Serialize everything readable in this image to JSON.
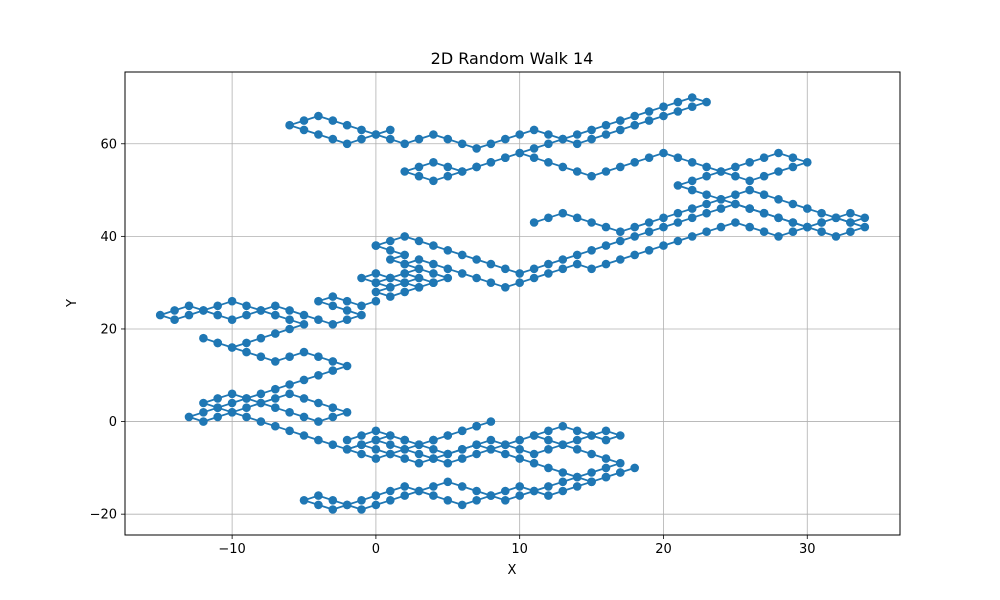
{
  "chart_data": {
    "type": "line",
    "title": "2D Random Walk 14",
    "xlabel": "X",
    "ylabel": "Y",
    "xlim": [
      -17.45,
      36.45
    ],
    "ylim": [
      -24.5,
      75.5
    ],
    "xticks": [
      -10,
      0,
      10,
      20,
      30
    ],
    "yticks": [
      -20,
      0,
      20,
      40,
      60
    ],
    "xtick_labels": [
      "−10",
      "0",
      "10",
      "20",
      "30"
    ],
    "ytick_labels": [
      "−20",
      "0",
      "20",
      "40",
      "60"
    ],
    "grid": true,
    "marker": "circle",
    "color": "#1f77b4",
    "series": [
      {
        "x": [
          0,
          1,
          2,
          1,
          2,
          3,
          4,
          5,
          4,
          3,
          2,
          1,
          0,
          1,
          2,
          3,
          4,
          3,
          2,
          1,
          0,
          -1,
          0,
          1,
          2,
          3,
          2,
          1,
          0,
          1,
          2,
          3,
          2,
          3,
          4,
          5,
          6,
          7,
          8,
          9,
          10,
          11,
          12,
          13,
          14,
          15,
          16,
          17,
          18,
          19,
          20,
          21,
          22,
          23,
          24,
          25,
          26,
          27,
          28,
          29,
          30,
          31,
          32,
          33,
          34,
          33,
          32,
          31,
          30,
          29,
          28,
          27,
          26,
          25,
          24,
          23,
          22,
          21,
          22,
          23,
          24,
          25,
          26,
          27,
          28,
          29,
          30,
          29,
          28,
          27,
          26,
          25,
          24,
          23,
          22,
          21,
          20,
          19,
          18,
          17,
          16,
          15,
          14,
          13,
          12,
          11,
          10,
          9,
          8,
          7,
          6,
          5,
          4,
          3,
          2,
          3,
          4,
          5,
          6,
          7,
          8,
          9,
          10,
          11,
          12,
          13,
          14,
          15,
          16,
          17,
          18,
          19,
          20,
          21,
          22,
          23,
          22,
          21,
          20,
          19,
          18,
          17,
          16,
          15,
          14,
          13,
          12,
          11,
          10,
          9,
          8,
          7,
          6,
          5,
          4,
          3,
          2,
          1,
          0,
          -1,
          -2,
          -3,
          -4,
          -5,
          -6,
          -5,
          -4,
          -3,
          -2,
          -1,
          0,
          1
        ],
        "y": [
          38,
          37,
          36,
          35,
          34,
          33,
          32,
          31,
          30,
          29,
          28,
          27,
          28,
          29,
          30,
          31,
          30,
          29,
          30,
          31,
          32,
          31,
          30,
          31,
          32,
          31,
          30,
          29,
          30,
          31,
          32,
          33,
          34,
          35,
          34,
          33,
          32,
          31,
          30,
          29,
          30,
          31,
          32,
          33,
          34,
          33,
          34,
          35,
          36,
          37,
          38,
          39,
          40,
          41,
          42,
          43,
          42,
          41,
          40,
          41,
          42,
          43,
          44,
          43,
          44,
          45,
          44,
          43,
          42,
          43,
          44,
          45,
          46,
          47,
          48,
          49,
          50,
          51,
          52,
          53,
          54,
          55,
          56,
          57,
          58,
          57,
          56,
          55,
          54,
          53,
          52,
          53,
          54,
          55,
          56,
          57,
          58,
          57,
          56,
          55,
          54,
          53,
          54,
          55,
          56,
          57,
          58,
          57,
          56,
          55,
          54,
          55,
          56,
          55,
          54,
          53,
          52,
          53,
          54,
          55,
          56,
          57,
          58,
          59,
          60,
          61,
          62,
          63,
          64,
          65,
          66,
          67,
          68,
          69,
          70,
          69,
          68,
          67,
          66,
          65,
          64,
          63,
          62,
          61,
          60,
          61,
          62,
          63,
          62,
          61,
          60,
          59,
          60,
          61,
          62,
          61,
          60,
          61,
          62,
          63,
          64,
          65,
          66,
          65,
          64,
          63,
          62,
          61,
          60,
          61,
          62,
          63
        ]
      },
      {
        "x": [
          0,
          1,
          2,
          3,
          4,
          5,
          6,
          7,
          8,
          9,
          10,
          11,
          12,
          13,
          14,
          15,
          16,
          17,
          18,
          19,
          20,
          21,
          22,
          23,
          24,
          25,
          26,
          27,
          28,
          29,
          30,
          31,
          32,
          33,
          34,
          33,
          32,
          31,
          30,
          29,
          28,
          27,
          26,
          25,
          24,
          23,
          22,
          21,
          20,
          19,
          18,
          17,
          16,
          15,
          14,
          13,
          12,
          11
        ],
        "y": [
          38,
          39,
          40,
          39,
          38,
          37,
          36,
          35,
          34,
          33,
          32,
          33,
          34,
          35,
          36,
          37,
          38,
          39,
          40,
          41,
          42,
          43,
          44,
          45,
          46,
          47,
          46,
          45,
          44,
          43,
          42,
          41,
          40,
          41,
          42,
          43,
          44,
          45,
          46,
          47,
          48,
          49,
          50,
          49,
          48,
          47,
          46,
          45,
          44,
          43,
          42,
          41,
          42,
          43,
          44,
          45,
          44,
          43
        ]
      },
      {
        "x": [
          0,
          -1,
          -2,
          -3,
          -4,
          -3,
          -2,
          -1,
          -2,
          -3,
          -4,
          -5,
          -6,
          -7,
          -8,
          -9,
          -10,
          -11,
          -12,
          -13,
          -14,
          -15,
          -14,
          -13,
          -12,
          -11,
          -10,
          -9,
          -8,
          -7,
          -6,
          -5,
          -6,
          -7,
          -8,
          -9,
          -10,
          -11,
          -12,
          -11,
          -10,
          -9,
          -8,
          -7,
          -6,
          -5,
          -4,
          -3,
          -2,
          -3,
          -4,
          -5,
          -6,
          -7,
          -8,
          -9,
          -10,
          -11,
          -12,
          -13,
          -12,
          -11,
          -10,
          -9,
          -8,
          -7,
          -6,
          -5,
          -4,
          -3,
          -2,
          -3,
          -4,
          -5,
          -6,
          -7,
          -8,
          -9,
          -10,
          -11,
          -12,
          -11,
          -10,
          -9,
          -8,
          -7,
          -6,
          -5,
          -4,
          -3,
          -2,
          -1
        ],
        "y": [
          26,
          25,
          26,
          27,
          26,
          25,
          24,
          23,
          22,
          21,
          22,
          23,
          24,
          25,
          24,
          23,
          22,
          23,
          24,
          25,
          24,
          23,
          22,
          23,
          24,
          25,
          26,
          25,
          24,
          23,
          22,
          21,
          20,
          19,
          18,
          17,
          16,
          17,
          18,
          17,
          16,
          15,
          14,
          13,
          14,
          15,
          14,
          13,
          12,
          11,
          10,
          9,
          8,
          7,
          6,
          5,
          4,
          3,
          2,
          1,
          0,
          1,
          2,
          3,
          4,
          5,
          6,
          5,
          4,
          3,
          2,
          1,
          0,
          1,
          2,
          3,
          4,
          5,
          6,
          5,
          4,
          3,
          2,
          1,
          0,
          -1,
          -2,
          -3,
          -4,
          -5,
          -6,
          -5
        ]
      },
      {
        "x": [
          -1,
          0,
          1,
          2,
          3,
          4,
          5,
          6,
          7,
          8,
          9,
          10,
          11,
          12,
          13,
          14,
          15,
          16,
          17,
          18,
          17,
          16,
          15,
          14,
          13,
          12,
          11,
          10,
          9,
          8,
          7,
          6,
          5,
          4,
          3,
          2,
          1,
          0,
          -1,
          -2,
          -3,
          -4,
          -5,
          -4,
          -3,
          -2,
          -1,
          0,
          1,
          2,
          3,
          4,
          5,
          6,
          7,
          8,
          9,
          10,
          11,
          12,
          13,
          14,
          15,
          16,
          17,
          16,
          15,
          14,
          13,
          12,
          11,
          10,
          9,
          8,
          7,
          6,
          5,
          4,
          3,
          2,
          1,
          0
        ],
        "y": [
          -5,
          -6,
          -7,
          -8,
          -9,
          -8,
          -7,
          -6,
          -5,
          -6,
          -7,
          -8,
          -9,
          -10,
          -11,
          -12,
          -13,
          -12,
          -11,
          -10,
          -11,
          -12,
          -13,
          -14,
          -15,
          -16,
          -15,
          -14,
          -15,
          -16,
          -17,
          -18,
          -17,
          -16,
          -15,
          -14,
          -15,
          -16,
          -17,
          -18,
          -19,
          -18,
          -17,
          -16,
          -17,
          -18,
          -19,
          -18,
          -17,
          -16,
          -15,
          -14,
          -13,
          -14,
          -15,
          -16,
          -17,
          -16,
          -15,
          -14,
          -13,
          -12,
          -11,
          -10,
          -9,
          -8,
          -7,
          -6,
          -5,
          -4,
          -3,
          -4,
          -5,
          -6,
          -7,
          -8,
          -9,
          -8,
          -7,
          -6,
          -5,
          -4
        ]
      },
      {
        "x": [
          -2,
          -1,
          0,
          1,
          2,
          3,
          4,
          5,
          6,
          7,
          8,
          7,
          6,
          5,
          4,
          3,
          2,
          1,
          0,
          -1,
          -2,
          -1,
          0,
          1,
          2,
          3,
          4,
          5,
          6,
          7,
          8,
          9,
          10,
          11,
          12,
          13,
          14,
          15,
          16,
          17,
          16,
          15,
          14,
          13,
          12,
          11
        ],
        "y": [
          -4,
          -3,
          -2,
          -3,
          -4,
          -5,
          -4,
          -3,
          -2,
          -1,
          0,
          -1,
          -2,
          -3,
          -4,
          -5,
          -6,
          -7,
          -8,
          -7,
          -6,
          -5,
          -4,
          -3,
          -4,
          -5,
          -6,
          -7,
          -6,
          -5,
          -4,
          -5,
          -6,
          -7,
          -6,
          -5,
          -4,
          -3,
          -2,
          -3,
          -4,
          -3,
          -2,
          -1,
          -2,
          -3
        ]
      }
    ]
  }
}
